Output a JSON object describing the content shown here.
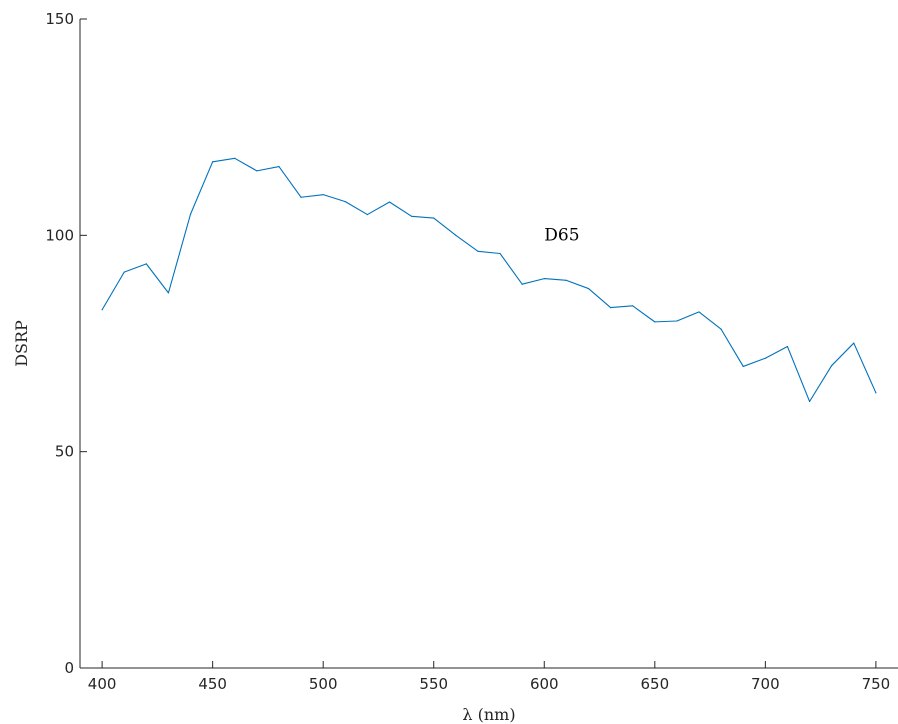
{
  "chart_data": {
    "type": "line",
    "xlabel": "λ (nm)",
    "ylabel": "DSRP",
    "xlim": [
      390,
      760
    ],
    "ylim": [
      0,
      150
    ],
    "xticks": [
      400,
      450,
      500,
      550,
      600,
      650,
      700,
      750
    ],
    "yticks": [
      0,
      50,
      100,
      150
    ],
    "grid": false,
    "annotations": [
      {
        "text": "D65",
        "x": 600,
        "y": 100
      }
    ],
    "series": [
      {
        "color": "#0072BD",
        "x": [
          400,
          410,
          420,
          430,
          440,
          450,
          460,
          470,
          480,
          490,
          500,
          510,
          520,
          530,
          540,
          550,
          560,
          570,
          580,
          590,
          600,
          610,
          620,
          630,
          640,
          650,
          660,
          670,
          680,
          690,
          700,
          710,
          720,
          730,
          740,
          750
        ],
        "y": [
          82.8,
          91.5,
          93.4,
          86.7,
          104.9,
          117.0,
          117.8,
          114.9,
          115.9,
          108.8,
          109.4,
          107.8,
          104.8,
          107.7,
          104.4,
          104.0,
          100.0,
          96.3,
          95.8,
          88.7,
          90.0,
          89.6,
          87.7,
          83.3,
          83.7,
          80.0,
          80.2,
          82.3,
          78.3,
          69.7,
          71.6,
          74.3,
          61.6,
          69.9,
          75.1,
          63.6
        ]
      }
    ]
  }
}
